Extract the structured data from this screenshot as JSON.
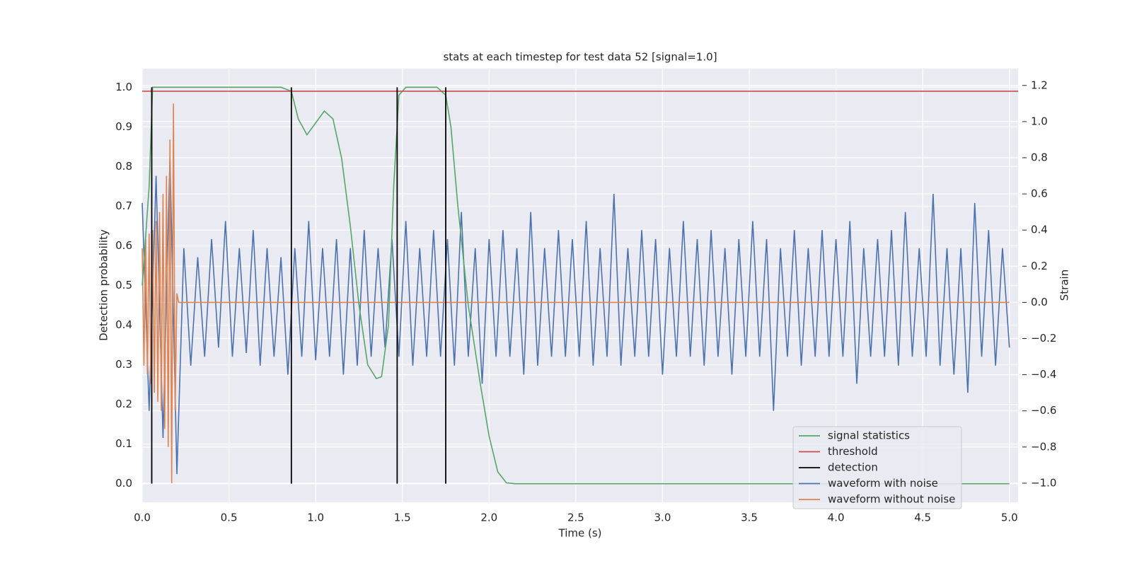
{
  "chart_data": {
    "type": "line",
    "title": "stats at each timestep for test data 52 [signal=1.0]",
    "xlabel": "Time (s)",
    "ylabel": "Detection probability",
    "y2label": "Strain",
    "xlim": [
      0,
      5.05
    ],
    "ylim": [
      -0.047,
      1.047
    ],
    "y2lim": [
      -1.106,
      1.293
    ],
    "xticks": [
      {
        "value": 0,
        "label": "0.0"
      },
      {
        "value": 0.5,
        "label": "0.5"
      },
      {
        "value": 1,
        "label": "1.0"
      },
      {
        "value": 1.5,
        "label": "1.5"
      },
      {
        "value": 2,
        "label": "2.0"
      },
      {
        "value": 2.5,
        "label": "2.5"
      },
      {
        "value": 3,
        "label": "3.0"
      },
      {
        "value": 3.5,
        "label": "3.5"
      },
      {
        "value": 4,
        "label": "4.0"
      },
      {
        "value": 4.5,
        "label": "4.5"
      },
      {
        "value": 5,
        "label": "5.0"
      }
    ],
    "yticks": [
      {
        "value": 0,
        "label": "0.0"
      },
      {
        "value": 0.1,
        "label": "0.1"
      },
      {
        "value": 0.2,
        "label": "0.2"
      },
      {
        "value": 0.3,
        "label": "0.3"
      },
      {
        "value": 0.4,
        "label": "0.4"
      },
      {
        "value": 0.5,
        "label": "0.5"
      },
      {
        "value": 0.6,
        "label": "0.6"
      },
      {
        "value": 0.7,
        "label": "0.7"
      },
      {
        "value": 0.8,
        "label": "0.8"
      },
      {
        "value": 0.9,
        "label": "0.9"
      },
      {
        "value": 1,
        "label": "1.0"
      }
    ],
    "y2ticks": [
      {
        "value": -1,
        "label": "−1.0"
      },
      {
        "value": -0.8,
        "label": "−0.8"
      },
      {
        "value": -0.6,
        "label": "−0.6"
      },
      {
        "value": -0.4,
        "label": "−0.4"
      },
      {
        "value": -0.2,
        "label": "−0.2"
      },
      {
        "value": 0,
        "label": "0.0"
      },
      {
        "value": 0.2,
        "label": "0.2"
      },
      {
        "value": 0.4,
        "label": "0.4"
      },
      {
        "value": 0.6,
        "label": "0.6"
      },
      {
        "value": 0.8,
        "label": "0.8"
      },
      {
        "value": 1,
        "label": "1.0"
      },
      {
        "value": 1.2,
        "label": "1.2"
      }
    ],
    "grid": true,
    "legend": "lower right",
    "series": [
      {
        "name": "signal statistics",
        "color": "#55a868",
        "x": [
          0,
          0.04,
          0.06,
          0.08,
          0.8,
          0.86,
          0.9,
          0.95,
          1.0,
          1.05,
          1.1,
          1.15,
          1.2,
          1.25,
          1.3,
          1.35,
          1.38,
          1.42,
          1.45,
          1.48,
          1.52,
          1.7,
          1.75,
          1.78,
          1.82,
          1.88,
          1.95,
          2.0,
          2.05,
          2.1,
          2.15,
          5.0
        ],
        "values": [
          0.5,
          0.75,
          1.0,
          1.0,
          1.0,
          0.99,
          0.92,
          0.88,
          0.91,
          0.94,
          0.92,
          0.82,
          0.65,
          0.45,
          0.3,
          0.265,
          0.27,
          0.4,
          0.75,
          0.98,
          1.0,
          1.0,
          0.98,
          0.9,
          0.7,
          0.45,
          0.25,
          0.12,
          0.03,
          0.002,
          0,
          0
        ]
      },
      {
        "name": "threshold",
        "color": "#c44e52",
        "x": [
          0,
          5.05
        ],
        "values": [
          0.99,
          0.99
        ]
      },
      {
        "name": "detection",
        "color": "#000000",
        "style": "vlines",
        "x": [
          0.055,
          0.86,
          1.47,
          1.75
        ],
        "values": [
          1,
          1,
          1,
          1
        ]
      },
      {
        "name": "waveform with noise",
        "color": "#4c72b0",
        "axis": "y2",
        "x": [
          0,
          0.04,
          0.08,
          0.12,
          0.16,
          0.2,
          0.24,
          0.28,
          0.32,
          0.36,
          0.4,
          0.44,
          0.48,
          0.52,
          0.56,
          0.6,
          0.64,
          0.68,
          0.72,
          0.76,
          0.8,
          0.84,
          0.88,
          0.92,
          0.96,
          1.0,
          1.04,
          1.08,
          1.12,
          1.16,
          1.2,
          1.24,
          1.28,
          1.32,
          1.36,
          1.4,
          1.44,
          1.48,
          1.52,
          1.56,
          1.6,
          1.64,
          1.68,
          1.72,
          1.76,
          1.8,
          1.84,
          1.88,
          1.92,
          1.96,
          2.0,
          2.04,
          2.08,
          2.12,
          2.16,
          2.2,
          2.24,
          2.28,
          2.32,
          2.36,
          2.4,
          2.44,
          2.48,
          2.52,
          2.56,
          2.6,
          2.64,
          2.68,
          2.72,
          2.76,
          2.8,
          2.84,
          2.88,
          2.92,
          2.96,
          3.0,
          3.04,
          3.08,
          3.12,
          3.16,
          3.2,
          3.24,
          3.28,
          3.32,
          3.36,
          3.4,
          3.44,
          3.48,
          3.52,
          3.56,
          3.6,
          3.64,
          3.68,
          3.72,
          3.76,
          3.8,
          3.84,
          3.88,
          3.92,
          3.96,
          4.0,
          4.04,
          4.08,
          4.12,
          4.16,
          4.2,
          4.24,
          4.28,
          4.32,
          4.36,
          4.4,
          4.44,
          4.48,
          4.52,
          4.56,
          4.6,
          4.64,
          4.68,
          4.72,
          4.76,
          4.8,
          4.84,
          4.88,
          4.92,
          4.96,
          5.0
        ],
        "values": [
          0.55,
          -0.6,
          0.7,
          -0.75,
          0.8,
          -0.95,
          0.3,
          -0.35,
          0.25,
          -0.3,
          0.35,
          -0.25,
          0.45,
          -0.3,
          0.3,
          -0.28,
          0.4,
          -0.35,
          0.3,
          -0.3,
          0.25,
          -0.4,
          0.3,
          -0.3,
          0.45,
          -0.32,
          0.3,
          -0.3,
          0.35,
          -0.4,
          0.3,
          -0.35,
          0.4,
          -0.3,
          0.3,
          -0.25,
          0.35,
          -0.3,
          0.45,
          -0.35,
          0.3,
          -0.3,
          0.4,
          -0.3,
          0.35,
          -0.35,
          0.5,
          -0.3,
          0.3,
          -0.45,
          0.35,
          -0.3,
          0.4,
          -0.3,
          0.3,
          -0.4,
          0.5,
          -0.35,
          0.3,
          -0.3,
          0.4,
          -0.3,
          0.35,
          -0.3,
          0.45,
          -0.35,
          0.3,
          -0.3,
          0.6,
          -0.35,
          0.3,
          -0.3,
          0.4,
          -0.3,
          0.35,
          -0.4,
          0.3,
          -0.3,
          0.45,
          -0.3,
          0.35,
          -0.35,
          0.4,
          -0.3,
          0.3,
          -0.4,
          0.35,
          -0.3,
          0.45,
          -0.3,
          0.35,
          -0.6,
          0.3,
          -0.3,
          0.4,
          -0.35,
          0.3,
          -0.3,
          0.4,
          -0.3,
          0.35,
          -0.3,
          0.45,
          -0.45,
          0.3,
          -0.3,
          0.35,
          -0.3,
          0.4,
          -0.35,
          0.5,
          -0.3,
          0.3,
          -0.3,
          0.6,
          -0.35,
          0.3,
          -0.4,
          0.3,
          -0.5,
          0.55,
          -0.3,
          0.4,
          -0.35,
          0.3,
          -0.25
        ]
      },
      {
        "name": "waveform without noise",
        "color": "#dd8452",
        "axis": "y2",
        "x": [
          0,
          0.01,
          0.02,
          0.03,
          0.04,
          0.05,
          0.06,
          0.07,
          0.08,
          0.09,
          0.1,
          0.11,
          0.12,
          0.13,
          0.14,
          0.15,
          0.16,
          0.17,
          0.18,
          0.19,
          0.2,
          0.21,
          5.0
        ],
        "values": [
          0.3,
          -0.35,
          0.35,
          -0.4,
          0.38,
          -0.45,
          0.4,
          -0.5,
          0.45,
          -0.55,
          0.5,
          -0.6,
          0.6,
          -0.7,
          0.7,
          -0.8,
          0.9,
          -1.0,
          1.1,
          -0.6,
          0.05,
          0,
          0
        ]
      }
    ]
  }
}
